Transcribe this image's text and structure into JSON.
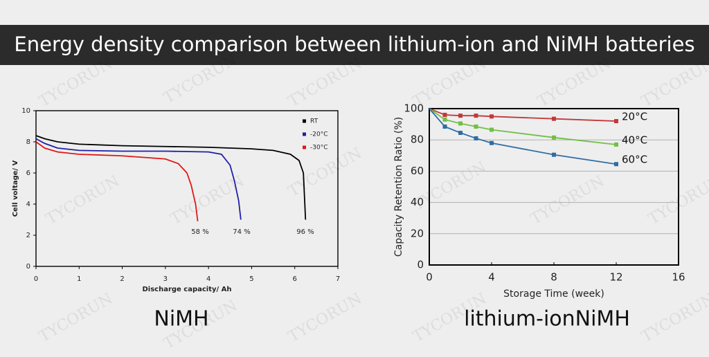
{
  "title": "Energy density comparison between lithium-ion and NiMH batteries",
  "watermark": "TYCORUN",
  "chart_data": [
    {
      "type": "line",
      "caption": "NiMH",
      "xlabel": "Discharge capacity/ Ah",
      "ylabel": "Cell voltage/ V",
      "xlim": [
        0,
        7
      ],
      "xticks": [
        0,
        1,
        2,
        3,
        4,
        5,
        6,
        7
      ],
      "ylim": [
        0,
        10
      ],
      "yticks": [
        0,
        2,
        4,
        6,
        8,
        10
      ],
      "grid": false,
      "legend": "upper right",
      "series": [
        {
          "name": "RT",
          "color": "#000000",
          "x": [
            0,
            0.2,
            0.5,
            1,
            2,
            3,
            4,
            5,
            5.5,
            5.9,
            6.1,
            6.2,
            6.25
          ],
          "values": [
            8.4,
            8.2,
            8.0,
            7.85,
            7.75,
            7.7,
            7.65,
            7.55,
            7.45,
            7.2,
            6.8,
            6.0,
            3.0
          ]
        },
        {
          "name": "-20°C",
          "color": "#1f1fa8",
          "x": [
            0,
            0.2,
            0.5,
            1,
            2,
            3,
            4,
            4.3,
            4.5,
            4.6,
            4.7,
            4.75
          ],
          "values": [
            8.2,
            7.9,
            7.6,
            7.45,
            7.4,
            7.4,
            7.35,
            7.2,
            6.5,
            5.5,
            4.2,
            3.0
          ]
        },
        {
          "name": "-30°C",
          "color": "#e01818",
          "x": [
            0,
            0.2,
            0.5,
            1,
            2,
            3,
            3.3,
            3.5,
            3.6,
            3.7,
            3.75
          ],
          "values": [
            8.0,
            7.6,
            7.35,
            7.2,
            7.1,
            6.9,
            6.6,
            6.0,
            5.2,
            4.0,
            2.9
          ]
        }
      ],
      "annotations": [
        "58 %",
        "74 %",
        "96 %"
      ]
    },
    {
      "type": "line",
      "caption": "lithium-ionNiMH",
      "xlabel": "Storage Time (week)",
      "ylabel": "Capacity Retention Ratio (%)",
      "xlim": [
        0,
        16
      ],
      "xticks": [
        0,
        4,
        8,
        12,
        16
      ],
      "ylim": [
        0,
        100
      ],
      "yticks": [
        0,
        20,
        40,
        60,
        80,
        100
      ],
      "grid": true,
      "legend": "line end",
      "markers": "square",
      "series": [
        {
          "name": "20°C",
          "color": "#c0393b",
          "x": [
            0,
            1,
            2,
            3,
            4,
            8,
            12
          ],
          "values": [
            100,
            96,
            95.5,
            95.5,
            95,
            93.5,
            92
          ]
        },
        {
          "name": "40°C",
          "color": "#72bf44",
          "x": [
            0,
            1,
            2,
            3,
            4,
            8,
            12
          ],
          "values": [
            100,
            93,
            90.5,
            88.5,
            86.5,
            81.5,
            77
          ]
        },
        {
          "name": "60°C",
          "color": "#2e6da4",
          "x": [
            0,
            1,
            2,
            3,
            4,
            8,
            12
          ],
          "values": [
            100,
            88.5,
            84.5,
            81,
            78,
            70.5,
            64.5
          ]
        }
      ]
    }
  ]
}
